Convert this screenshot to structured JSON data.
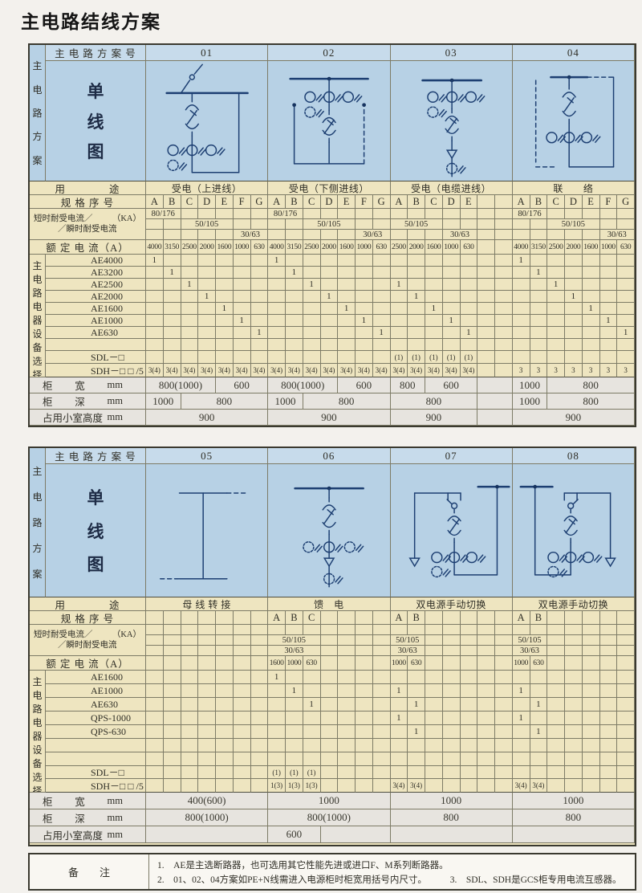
{
  "title": "主电路结线方案",
  "colors": {
    "diagram_area_blue": "#b7d1e5",
    "header_blue": "#c7dbeb",
    "spec_area_cream": "#eee5c0",
    "dims_area_grey": "#e7e4df",
    "grid_line": "#7d7b66",
    "diagram_ink": "#1d3f72",
    "text_ink": "#2f2e26"
  },
  "labels": {
    "corner": "主 电 路 方 案 号",
    "side": "主电路方案",
    "diagram_caption": "单线图",
    "equipment_side": "主电路电器设备选择",
    "usage": "用　　　　途",
    "spec": "规 格 序 号",
    "withstand_l1": "短时耐受电流／",
    "withstand_unit": "（KA）",
    "withstand_l2": "／瞬时耐受电流",
    "rated": "额 定 电 流（A）",
    "sdl": "SDL－□",
    "sdh": "SDH－□ □ /5",
    "width_parts": [
      "柜",
      "宽",
      "mm"
    ],
    "depth_parts": [
      "柜",
      "深",
      "mm"
    ],
    "height_parts": [
      "占用小室高度",
      "mm"
    ]
  },
  "table1": {
    "equipment": [
      "AE4000",
      "AE3200",
      "AE2500",
      "AE2000",
      "AE1600",
      "AE1000",
      "AE630"
    ],
    "blank_rows": 1,
    "groups": [
      {
        "scheme_no": "01",
        "usage": "受电（上进线）",
        "diagram": "d01",
        "letters": [
          "A",
          "B",
          "C",
          "D",
          "E",
          "F",
          "G"
        ],
        "withstand": [
          [
            {
              "s": 0,
              "n": 2,
              "t": "80/176"
            }
          ],
          [
            {
              "s": 2,
              "n": 3,
              "t": "50/105"
            }
          ],
          [
            {
              "s": 5,
              "n": 2,
              "t": "30/63"
            }
          ]
        ],
        "rated": [
          "4000",
          "3150",
          "2500",
          "2000",
          "1600",
          "1000",
          "630"
        ],
        "marks": {
          "AE4000": 0,
          "AE3200": 1,
          "AE2500": 2,
          "AE2000": 3,
          "AE1600": 4,
          "AE1000": 5,
          "AE630": 6
        },
        "sdh": [
          "3(4)",
          "3(4)",
          "3(4)",
          "3(4)",
          "3(4)",
          "3(4)",
          "3(4)"
        ],
        "width": [
          {
            "n": 4,
            "t": "800(1000)"
          },
          {
            "n": 3,
            "t": "600"
          }
        ],
        "depth": [
          {
            "n": 2,
            "t": "1000"
          },
          {
            "n": 5,
            "t": "800"
          }
        ],
        "height": [
          {
            "n": 7,
            "t": "900"
          }
        ]
      },
      {
        "scheme_no": "02",
        "usage": "受电（下侧进线）",
        "diagram": "d02",
        "letters": [
          "A",
          "B",
          "C",
          "D",
          "E",
          "F",
          "G"
        ],
        "withstand": [
          [
            {
              "s": 0,
              "n": 2,
              "t": "80/176"
            }
          ],
          [
            {
              "s": 2,
              "n": 3,
              "t": "50/105"
            }
          ],
          [
            {
              "s": 5,
              "n": 2,
              "t": "30/63"
            }
          ]
        ],
        "rated": [
          "4000",
          "3150",
          "2500",
          "2000",
          "1600",
          "1000",
          "630"
        ],
        "marks": {
          "AE4000": 0,
          "AE3200": 1,
          "AE2500": 2,
          "AE2000": 3,
          "AE1600": 4,
          "AE1000": 5,
          "AE630": 6
        },
        "sdh": [
          "3(4)",
          "3(4)",
          "3(4)",
          "3(4)",
          "3(4)",
          "3(4)",
          "3(4)"
        ],
        "width": [
          {
            "n": 4,
            "t": "800(1000)"
          },
          {
            "n": 3,
            "t": "600"
          }
        ],
        "depth": [
          {
            "n": 2,
            "t": "1000"
          },
          {
            "n": 5,
            "t": "800"
          }
        ],
        "height": [
          {
            "n": 7,
            "t": "900"
          }
        ]
      },
      {
        "scheme_no": "03",
        "usage": "受电（电缆进线）",
        "diagram": "d03",
        "letters": [
          "A",
          "B",
          "C",
          "D",
          "E",
          "",
          ""
        ],
        "withstand": [
          [],
          [
            {
              "s": 0,
              "n": 3,
              "t": "50/105"
            }
          ],
          [
            {
              "s": 3,
              "n": 2,
              "t": "30/63"
            }
          ]
        ],
        "rated": [
          "2500",
          "2000",
          "1600",
          "1000",
          "630",
          "",
          ""
        ],
        "marks": {
          "AE2500": 0,
          "AE2000": 1,
          "AE1600": 2,
          "AE1000": 3,
          "AE630": 4
        },
        "sdl": [
          "(1)",
          "(1)",
          "(1)",
          "(1)",
          "(1)",
          "",
          ""
        ],
        "sdh": [
          "3(4)",
          "3(4)",
          "3(4)",
          "3(4)",
          "3(4)",
          "",
          ""
        ],
        "width": [
          {
            "n": 2,
            "t": "800"
          },
          {
            "n": 3,
            "t": "600"
          },
          {
            "n": 2,
            "t": ""
          }
        ],
        "depth": [
          {
            "n": 5,
            "t": "800"
          },
          {
            "n": 2,
            "t": ""
          }
        ],
        "height": [
          {
            "n": 5,
            "t": "900"
          },
          {
            "n": 2,
            "t": ""
          }
        ]
      },
      {
        "scheme_no": "04",
        "usage": "联　　络",
        "diagram": "d04",
        "letters": [
          "A",
          "B",
          "C",
          "D",
          "E",
          "F",
          "G"
        ],
        "withstand": [
          [
            {
              "s": 0,
              "n": 2,
              "t": "80/176"
            }
          ],
          [
            {
              "s": 2,
              "n": 3,
              "t": "50/105"
            }
          ],
          [
            {
              "s": 5,
              "n": 2,
              "t": "30/63"
            }
          ]
        ],
        "rated": [
          "4000",
          "3150",
          "2500",
          "2000",
          "1600",
          "1000",
          "630"
        ],
        "marks": {
          "AE4000": 0,
          "AE3200": 1,
          "AE2500": 2,
          "AE2000": 3,
          "AE1600": 4,
          "AE1000": 5,
          "AE630": 6
        },
        "sdh": [
          "3",
          "3",
          "3",
          "3",
          "3",
          "3",
          "3"
        ],
        "width": [
          {
            "n": 2,
            "t": "1000"
          },
          {
            "n": 5,
            "t": "800"
          }
        ],
        "depth": [
          {
            "n": 2,
            "t": "1000"
          },
          {
            "n": 5,
            "t": "800"
          }
        ],
        "height": [
          {
            "n": 7,
            "t": "900"
          }
        ]
      }
    ]
  },
  "table2": {
    "equipment": [
      "AE1600",
      "AE1000",
      "AE630",
      "QPS-1000",
      "QPS-630"
    ],
    "blank_rows": 2,
    "groups": [
      {
        "scheme_no": "05",
        "usage": "母 线 转 接",
        "diagram": "d05",
        "letters": [
          "",
          "",
          "",
          "",
          "",
          "",
          ""
        ],
        "withstand": [
          [],
          [],
          []
        ],
        "rated": [
          "",
          "",
          "",
          "",
          "",
          "",
          ""
        ],
        "marks": {},
        "width": [
          {
            "n": 7,
            "t": "400(600)"
          }
        ],
        "depth": [
          {
            "n": 7,
            "t": "800(1000)"
          }
        ],
        "height": [
          {
            "n": 7,
            "t": ""
          }
        ]
      },
      {
        "scheme_no": "06",
        "usage": "馈　电",
        "diagram": "d06",
        "letters": [
          "A",
          "B",
          "C",
          "",
          "",
          "",
          ""
        ],
        "withstand": [
          [],
          [
            {
              "s": 0,
              "n": 3,
              "t": "50/105"
            }
          ],
          [
            {
              "s": 0,
              "n": 3,
              "t": "30/63"
            }
          ]
        ],
        "rated": [
          "1600",
          "1000",
          "630",
          "",
          "",
          "",
          ""
        ],
        "marks": {
          "AE1600": 0,
          "AE1000": 1,
          "AE630": 2
        },
        "sdl": [
          "(1)",
          "(1)",
          "(1)",
          "",
          "",
          "",
          ""
        ],
        "sdh": [
          "1(3)",
          "1(3)",
          "1(3)",
          "",
          "",
          "",
          ""
        ],
        "width": [
          {
            "n": 7,
            "t": "1000"
          }
        ],
        "depth": [
          {
            "n": 7,
            "t": "800(1000)"
          }
        ],
        "height": [
          {
            "n": 3,
            "t": "600"
          },
          {
            "n": 4,
            "t": ""
          }
        ]
      },
      {
        "scheme_no": "07",
        "usage": "双电源手动切换",
        "diagram": "d07",
        "letters": [
          "A",
          "B",
          "",
          "",
          "",
          "",
          ""
        ],
        "withstand": [
          [],
          [
            {
              "s": 0,
              "n": 2,
              "t": "50/105"
            }
          ],
          [
            {
              "s": 0,
              "n": 2,
              "t": "30/63"
            }
          ]
        ],
        "rated": [
          "1000",
          "630",
          "",
          "",
          "",
          "",
          ""
        ],
        "marks": {
          "AE1000": 0,
          "AE630": 1,
          "QPS-1000": 0,
          "QPS-630": 1
        },
        "sdh": [
          "3(4)",
          "3(4)",
          "",
          "",
          "",
          "",
          ""
        ],
        "width": [
          {
            "n": 7,
            "t": "1000"
          }
        ],
        "depth": [
          {
            "n": 7,
            "t": "800"
          }
        ],
        "height": [
          {
            "n": 7,
            "t": ""
          }
        ]
      },
      {
        "scheme_no": "08",
        "usage": "双电源手动切换",
        "diagram": "d08",
        "letters": [
          "A",
          "B",
          "",
          "",
          "",
          "",
          ""
        ],
        "withstand": [
          [],
          [
            {
              "s": 0,
              "n": 2,
              "t": "50/105"
            }
          ],
          [
            {
              "s": 0,
              "n": 2,
              "t": "30/63"
            }
          ]
        ],
        "rated": [
          "1000",
          "630",
          "",
          "",
          "",
          "",
          ""
        ],
        "marks": {
          "AE1000": 0,
          "AE630": 1,
          "QPS-1000": 0,
          "QPS-630": 1
        },
        "sdh": [
          "3(4)",
          "3(4)",
          "",
          "",
          "",
          "",
          ""
        ],
        "width": [
          {
            "n": 7,
            "t": "1000"
          }
        ],
        "depth": [
          {
            "n": 7,
            "t": "800"
          }
        ],
        "height": [
          {
            "n": 7,
            "t": ""
          }
        ]
      }
    ]
  },
  "notes": {
    "label": "备　　注",
    "items": [
      "1.　AE是主选断路器，也可选用其它性能先进或进口F、M系列断路器。",
      "2.　01、02、04方案如PE+N线需进入电源柜时柜宽用括号内尺寸。",
      "3.　SDL、SDH是GCS柜专用电流互感器。"
    ]
  }
}
